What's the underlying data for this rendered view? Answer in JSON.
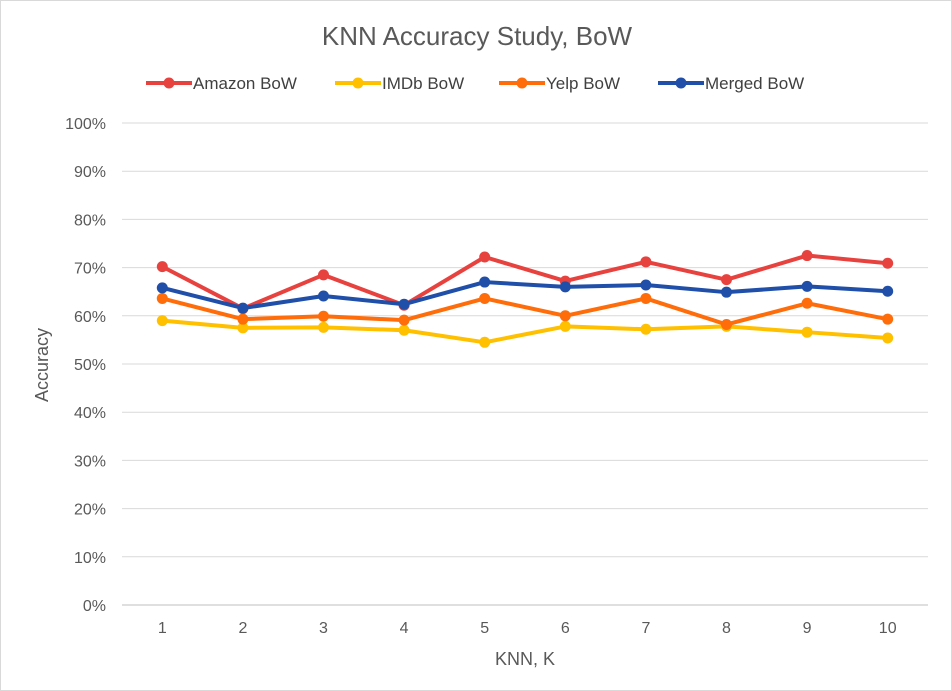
{
  "chart_data": {
    "type": "line",
    "title": "KNN Accuracy Study, BoW",
    "xlabel": "KNN, K",
    "ylabel": "Accuracy",
    "categories": [
      "1",
      "2",
      "3",
      "4",
      "5",
      "6",
      "7",
      "8",
      "9",
      "10"
    ],
    "ylim": [
      0,
      100
    ],
    "y_ticks": [
      "0%",
      "10%",
      "20%",
      "30%",
      "40%",
      "50%",
      "60%",
      "70%",
      "80%",
      "90%",
      "100%"
    ],
    "grid": "horizontal",
    "legend_position": "top",
    "series": [
      {
        "name": "Amazon BoW",
        "color": "#e8423f",
        "values": [
          70.2,
          61.5,
          68.5,
          62.2,
          72.2,
          67.2,
          71.2,
          67.5,
          72.5,
          70.9
        ]
      },
      {
        "name": "IMDb BoW",
        "color": "#ffc000",
        "values": [
          59.0,
          57.5,
          57.6,
          57.0,
          54.5,
          57.8,
          57.2,
          57.8,
          56.6,
          55.4
        ]
      },
      {
        "name": "Yelp BoW",
        "color": "#ff6d0a",
        "values": [
          63.6,
          59.3,
          59.9,
          59.1,
          63.6,
          60.0,
          63.6,
          58.2,
          62.6,
          59.3
        ]
      },
      {
        "name": "Merged BoW",
        "color": "#1f4fa8",
        "values": [
          65.8,
          61.6,
          64.1,
          62.4,
          67.0,
          66.0,
          66.4,
          64.9,
          66.1,
          65.1
        ]
      }
    ]
  }
}
